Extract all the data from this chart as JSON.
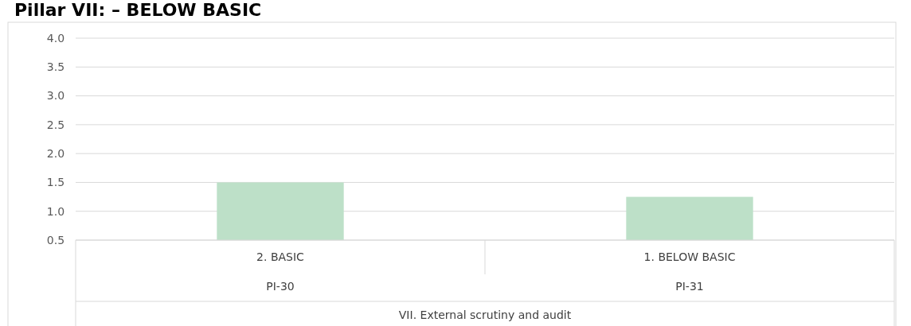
{
  "chart_data": {
    "type": "bar",
    "title": "Pillar VII: – BELOW BASIC",
    "categories": [
      "2. BASIC",
      "1. BELOW BASIC"
    ],
    "values": [
      1.5,
      1.25
    ],
    "color": "#bde0c8",
    "ylim": [
      0.5,
      4
    ],
    "yticks": [
      {
        "value": 0.5,
        "label": "0.5"
      },
      {
        "value": 1,
        "label": "1.0"
      },
      {
        "value": 1.5,
        "label": "1.5"
      },
      {
        "value": 2,
        "label": "2.0"
      },
      {
        "value": 2.5,
        "label": "2.5"
      },
      {
        "value": 3,
        "label": "3.0"
      },
      {
        "value": 3.5,
        "label": "3.5"
      },
      {
        "value": 4,
        "label": "4.0"
      }
    ],
    "grid": "y",
    "xlabel": "VII. External scrutiny and audit",
    "annotations": [
      "PI-30",
      "PI-31"
    ]
  }
}
